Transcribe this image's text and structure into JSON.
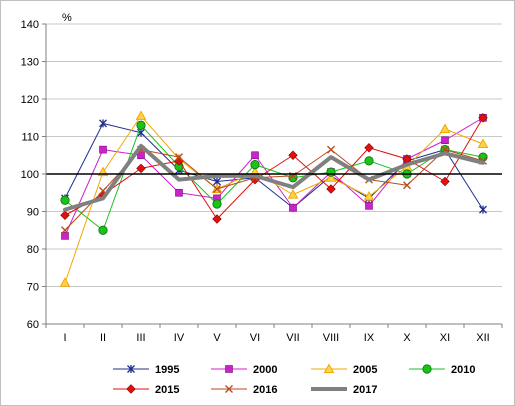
{
  "chart_data": {
    "type": "line",
    "unit_label": "%",
    "categories": [
      "I",
      "II",
      "III",
      "IV",
      "V",
      "VI",
      "VII",
      "VIII",
      "IX",
      "X",
      "XI",
      "XII"
    ],
    "ylim": [
      60,
      140
    ],
    "yticks": [
      60,
      70,
      80,
      90,
      100,
      110,
      120,
      130,
      140
    ],
    "reference_line": 100,
    "grid": "horizontal",
    "legend_position": "bottom",
    "series": [
      {
        "name": "1995",
        "marker": "asterisk",
        "color": "#1f2f8f",
        "width": 1,
        "values": [
          93.5,
          113.5,
          111.0,
          101.0,
          98.0,
          99.0,
          91.0,
          99.5,
          93.5,
          103.5,
          106.5,
          90.5
        ]
      },
      {
        "name": "2000",
        "marker": "square",
        "color": "#cc22cc",
        "width": 1,
        "values": [
          83.5,
          106.5,
          105.0,
          95.0,
          93.5,
          105.0,
          91.0,
          100.5,
          91.5,
          104.0,
          109.0,
          115.0
        ]
      },
      {
        "name": "2005",
        "marker": "triangle",
        "color": "#f2a900",
        "width": 1,
        "values": [
          71.0,
          100.5,
          115.5,
          104.0,
          96.0,
          100.5,
          94.5,
          99.0,
          94.0,
          102.0,
          112.0,
          108.0
        ]
      },
      {
        "name": "2010",
        "marker": "circle",
        "color": "#19c419",
        "width": 1,
        "values": [
          93.0,
          85.0,
          113.0,
          102.0,
          92.0,
          102.5,
          99.0,
          100.5,
          103.5,
          100.0,
          106.5,
          104.5
        ]
      },
      {
        "name": "2015",
        "marker": "diamond",
        "color": "#e01010",
        "width": 1,
        "values": [
          89.0,
          94.5,
          101.5,
          103.5,
          88.0,
          98.5,
          105.0,
          96.0,
          107.0,
          104.0,
          98.0,
          115.0
        ]
      },
      {
        "name": "2016",
        "marker": "x",
        "color": "#b84a1e",
        "width": 1,
        "values": [
          85.0,
          95.5,
          106.5,
          104.5,
          96.0,
          99.0,
          99.5,
          106.5,
          98.5,
          97.0,
          106.5,
          103.5
        ]
      },
      {
        "name": "2017",
        "marker": "none",
        "color": "#808080",
        "width": 4,
        "values": [
          90.5,
          93.5,
          107.5,
          98.5,
          99.5,
          99.5,
          96.5,
          104.5,
          98.5,
          102.5,
          105.5,
          103.0
        ]
      }
    ]
  }
}
